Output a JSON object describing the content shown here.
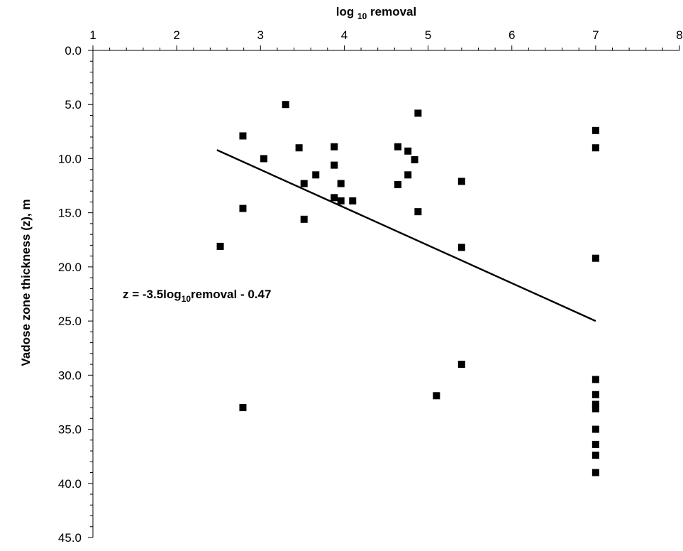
{
  "chart_data": {
    "type": "scatter",
    "title": "",
    "xlabel": {
      "prefix": "log ",
      "sub": "10",
      "suffix": " removal"
    },
    "ylabel": "Vadose zone thickness (z), m",
    "xlim": [
      1,
      8
    ],
    "ylim": [
      0,
      45
    ],
    "y_inverted": true,
    "x_axis_position": "top",
    "x_ticks": [
      1,
      2,
      3,
      4,
      5,
      6,
      7,
      8
    ],
    "y_ticks": [
      0,
      5,
      10,
      15,
      20,
      25,
      30,
      35,
      40,
      45
    ],
    "y_tick_labels": [
      "0.0",
      "5.0",
      "10.0",
      "15.0",
      "20.0",
      "25.0",
      "30.0",
      "35.0",
      "40.0",
      "45.0"
    ],
    "grid": false,
    "marker": "square",
    "marker_color": "#000000",
    "points": [
      {
        "x": 2.52,
        "y": 18.1
      },
      {
        "x": 2.79,
        "y": 7.9
      },
      {
        "x": 2.79,
        "y": 14.6
      },
      {
        "x": 2.79,
        "y": 33.0
      },
      {
        "x": 3.04,
        "y": 10.0
      },
      {
        "x": 3.3,
        "y": 5.0
      },
      {
        "x": 3.46,
        "y": 9.0
      },
      {
        "x": 3.52,
        "y": 12.3
      },
      {
        "x": 3.52,
        "y": 15.6
      },
      {
        "x": 3.66,
        "y": 11.5
      },
      {
        "x": 3.88,
        "y": 8.9
      },
      {
        "x": 3.88,
        "y": 10.6
      },
      {
        "x": 3.88,
        "y": 13.6
      },
      {
        "x": 3.96,
        "y": 12.3
      },
      {
        "x": 3.96,
        "y": 13.9
      },
      {
        "x": 4.1,
        "y": 13.9
      },
      {
        "x": 4.64,
        "y": 8.9
      },
      {
        "x": 4.64,
        "y": 12.4
      },
      {
        "x": 4.76,
        "y": 9.3
      },
      {
        "x": 4.76,
        "y": 11.5
      },
      {
        "x": 4.84,
        "y": 10.1
      },
      {
        "x": 4.88,
        "y": 5.8
      },
      {
        "x": 4.88,
        "y": 14.9
      },
      {
        "x": 5.1,
        "y": 31.9
      },
      {
        "x": 5.4,
        "y": 12.1
      },
      {
        "x": 5.4,
        "y": 18.2
      },
      {
        "x": 5.4,
        "y": 29.0
      },
      {
        "x": 7.0,
        "y": 7.4
      },
      {
        "x": 7.0,
        "y": 9.0
      },
      {
        "x": 7.0,
        "y": 19.2
      },
      {
        "x": 7.0,
        "y": 30.4
      },
      {
        "x": 7.0,
        "y": 31.8
      },
      {
        "x": 7.0,
        "y": 32.7
      },
      {
        "x": 7.0,
        "y": 33.1
      },
      {
        "x": 7.0,
        "y": 35.0
      },
      {
        "x": 7.0,
        "y": 36.4
      },
      {
        "x": 7.0,
        "y": 37.4
      },
      {
        "x": 7.0,
        "y": 39.0
      }
    ],
    "fit_line": {
      "x": [
        2.48,
        7.0
      ],
      "y": [
        9.2,
        25.0
      ],
      "color": "#000000"
    },
    "annotation": {
      "prefix": "z = -3.5log",
      "sub": "10",
      "suffix": "removal - 0.47"
    }
  }
}
